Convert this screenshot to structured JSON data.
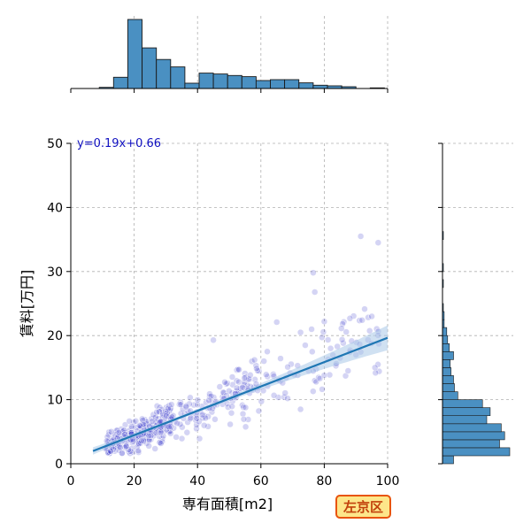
{
  "chart_data": {
    "type": "scatter",
    "xlabel": "専有面積[m2]",
    "ylabel": "賃料[万円]",
    "xlim": [
      0,
      100
    ],
    "ylim": [
      0,
      50
    ],
    "xticks": [
      0,
      20,
      40,
      60,
      80,
      100
    ],
    "yticks": [
      0,
      10,
      20,
      30,
      40,
      50
    ],
    "grid": true,
    "regression": {
      "equation": "y=0.19x+0.66",
      "slope": 0.19,
      "intercept": 0.66,
      "x_range": [
        7,
        100
      ]
    },
    "badge": {
      "label": "左京区",
      "fill": "#fde68a",
      "border": "#e8540c",
      "text_color": "#c2410c"
    },
    "colors": {
      "points": "#3b3bcc",
      "regression": "#1f77b4",
      "ci_band": "#a9c9e8",
      "histogram": "#4a90c2",
      "equation_text": "#1010c0"
    },
    "scatter_seed": 7,
    "scatter_points": [
      [
        91.5,
        35.5
      ],
      [
        97,
        34.5
      ],
      [
        76.5,
        29.8
      ],
      [
        77,
        26.8
      ],
      [
        80,
        22.2
      ],
      [
        65,
        22.1
      ],
      [
        82,
        18
      ],
      [
        95,
        23
      ],
      [
        45,
        19.3
      ],
      [
        76,
        21
      ],
      [
        72.5,
        20.5
      ],
      [
        72.5,
        8.5
      ],
      [
        85,
        16.5
      ],
      [
        96,
        15
      ],
      [
        87.5,
        14.5
      ],
      [
        90,
        17
      ],
      [
        62,
        17.5
      ],
      [
        58,
        16.2
      ],
      [
        74,
        18.5
      ],
      [
        80,
        13.8
      ]
    ],
    "marginal_x": {
      "bin_edges": [
        0,
        4.5,
        9,
        13.5,
        18,
        22.5,
        27,
        31.5,
        36,
        40.5,
        45,
        49.5,
        54,
        58.5,
        63,
        67.5,
        72,
        76.5,
        81,
        85.5,
        90,
        94.5,
        99
      ],
      "counts": [
        0,
        0,
        4,
        38,
        233,
        137,
        98,
        73,
        18,
        52,
        49,
        44,
        40,
        27,
        30,
        30,
        19,
        11,
        9,
        6,
        0,
        2
      ]
    },
    "marginal_y": {
      "bin_edges": [
        0,
        1.25,
        2.5,
        3.75,
        5,
        6.25,
        7.5,
        8.75,
        10,
        11.25,
        12.5,
        13.75,
        15,
        16.25,
        17.5,
        18.75,
        20,
        21.25,
        22.5,
        23.75,
        25,
        26.25,
        27.5,
        28.75,
        30,
        31.25,
        32.5,
        33.75,
        35,
        36.25,
        37.5,
        38.75,
        40
      ],
      "counts": [
        13,
        79,
        67,
        73,
        69,
        52,
        56,
        47,
        18,
        14,
        13,
        10,
        9,
        13,
        8,
        6,
        5,
        2,
        2,
        1,
        0,
        0,
        1,
        0,
        1,
        0,
        0,
        0,
        1,
        0,
        0,
        0
      ]
    }
  }
}
